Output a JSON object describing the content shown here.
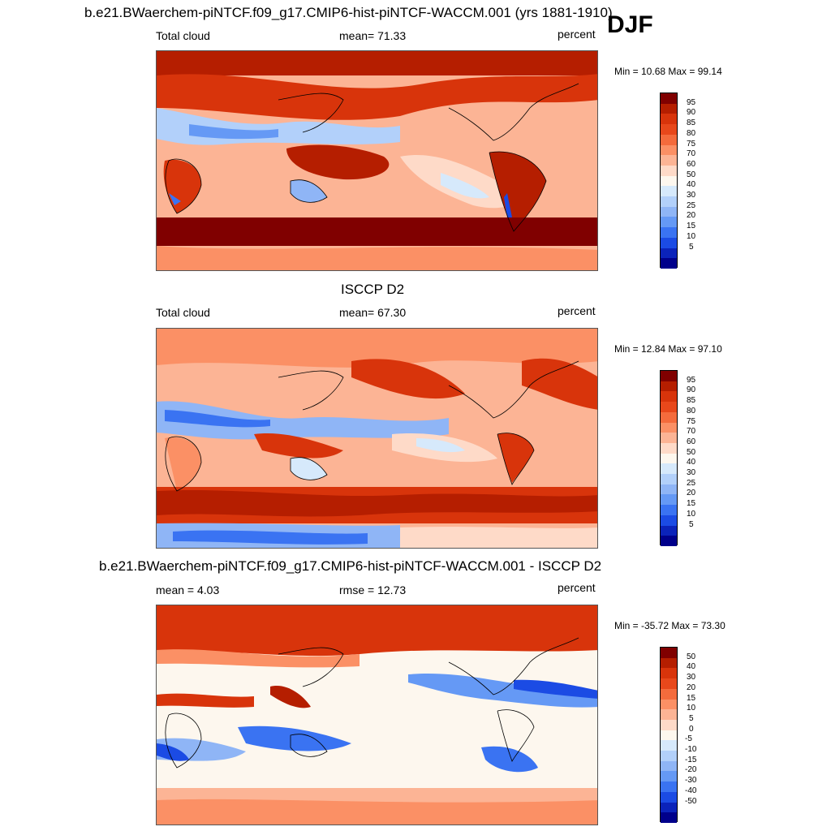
{
  "season": "DJF",
  "panels": [
    {
      "title": "b.e21.BWaerchem-piNTCF.f09_g17.CMIP6-hist-piNTCF-WACCM.001 (yrs 1881-1910)",
      "left_label": "Total cloud",
      "center_label": "mean=  71.33",
      "right_label": "percent",
      "minmax": "Min =  10.68 Max =  99.14",
      "colorbar": {
        "labels": [
          "95",
          "90",
          "85",
          "80",
          "75",
          "70",
          "60",
          "50",
          "40",
          "30",
          "25",
          "20",
          "15",
          "10",
          "5"
        ],
        "colors": [
          "#800000",
          "#b51e00",
          "#d8340b",
          "#e8481b",
          "#f46b3c",
          "#fb9065",
          "#fcb495",
          "#fedac8",
          "#fdf7ee",
          "#d6e9fb",
          "#b2d0fa",
          "#8fb5f6",
          "#6599f5",
          "#3a73f2",
          "#1b4be4",
          "#0b23ba",
          "#00008b"
        ]
      },
      "map_theme": "model"
    },
    {
      "title": "ISCCP D2",
      "left_label": "Total cloud",
      "center_label": "mean=  67.30",
      "right_label": "percent",
      "minmax": "Min =  12.84 Max =  97.10",
      "colorbar": {
        "labels": [
          "95",
          "90",
          "85",
          "80",
          "75",
          "70",
          "60",
          "50",
          "40",
          "30",
          "25",
          "20",
          "15",
          "10",
          "5"
        ],
        "colors": [
          "#800000",
          "#b51e00",
          "#d8340b",
          "#e8481b",
          "#f46b3c",
          "#fb9065",
          "#fcb495",
          "#fedac8",
          "#fdf7ee",
          "#d6e9fb",
          "#b2d0fa",
          "#8fb5f6",
          "#6599f5",
          "#3a73f2",
          "#1b4be4",
          "#0b23ba",
          "#00008b"
        ]
      },
      "map_theme": "obs"
    },
    {
      "title": "b.e21.BWaerchem-piNTCF.f09_g17.CMIP6-hist-piNTCF-WACCM.001 - ISCCP D2",
      "left_label": "mean =   4.03",
      "center_label": "rmse =  12.73",
      "right_label": "percent",
      "minmax": "Min = -35.72 Max =  73.30",
      "colorbar": {
        "labels": [
          "50",
          "40",
          "30",
          "20",
          "15",
          "10",
          "5",
          "0",
          "-5",
          "-10",
          "-15",
          "-20",
          "-30",
          "-40",
          "-50"
        ],
        "colors": [
          "#800000",
          "#b51e00",
          "#d8340b",
          "#e8481b",
          "#f46b3c",
          "#fb9065",
          "#fcb495",
          "#fedac8",
          "#fdf7ee",
          "#d6e9fb",
          "#b2d0fa",
          "#8fb5f6",
          "#6599f5",
          "#3a73f2",
          "#1b4be4",
          "#0b23ba",
          "#00008b"
        ]
      },
      "map_theme": "diff"
    }
  ],
  "chart_data": [
    {
      "type": "heatmap",
      "title": "b.e21.BWaerchem-piNTCF.f09_g17.CMIP6-hist-piNTCF-WACCM.001 (yrs 1881-1910)",
      "variable": "Total cloud",
      "units": "percent",
      "mean": 71.33,
      "min": 10.68,
      "max": 99.14,
      "contour_levels": [
        5,
        10,
        15,
        20,
        25,
        30,
        40,
        50,
        60,
        70,
        75,
        80,
        85,
        90,
        95
      ],
      "xlim": [
        0,
        360
      ],
      "ylim": [
        -90,
        90
      ]
    },
    {
      "type": "heatmap",
      "title": "ISCCP D2",
      "variable": "Total cloud",
      "units": "percent",
      "mean": 67.3,
      "min": 12.84,
      "max": 97.1,
      "contour_levels": [
        5,
        10,
        15,
        20,
        25,
        30,
        40,
        50,
        60,
        70,
        75,
        80,
        85,
        90,
        95
      ],
      "xlim": [
        0,
        360
      ],
      "ylim": [
        -90,
        90
      ]
    },
    {
      "type": "heatmap",
      "title": "b.e21.BWaerchem-piNTCF.f09_g17.CMIP6-hist-piNTCF-WACCM.001 - ISCCP D2",
      "units": "percent",
      "mean": 4.03,
      "rmse": 12.73,
      "min": -35.72,
      "max": 73.3,
      "contour_levels": [
        -50,
        -40,
        -30,
        -20,
        -15,
        -10,
        -5,
        0,
        5,
        10,
        15,
        20,
        30,
        40,
        50
      ],
      "xlim": [
        0,
        360
      ],
      "ylim": [
        -90,
        90
      ]
    }
  ]
}
